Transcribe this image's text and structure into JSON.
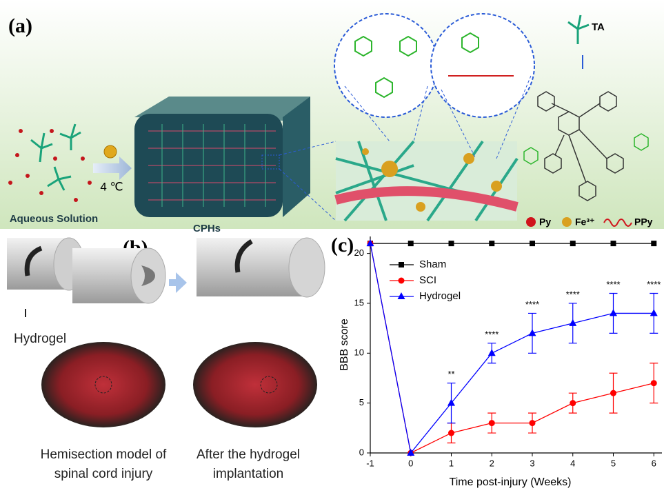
{
  "panel_a": {
    "label": "(a)",
    "aqueous_solution": "Aqueous Solution",
    "temperature": "4 ℃",
    "cphs": "CPHs",
    "ta": "TA",
    "legend": [
      "Py",
      "Fe³⁺",
      "PPy"
    ]
  },
  "panel_b": {
    "label": "(b)",
    "hydrogel": "Hydrogel",
    "caption_left": [
      "Hemisection model of",
      "spinal cord injury"
    ],
    "caption_right": [
      "After the hydrogel",
      "implantation"
    ]
  },
  "chart_data": {
    "type": "line",
    "label": "(c)",
    "x_label": "Time post-injury (Weeks)",
    "y_label": "BBB score",
    "x": [
      -1,
      0,
      1,
      2,
      3,
      4,
      5,
      6
    ],
    "xlim": [
      -1,
      6.2
    ],
    "xticks": [
      -1,
      0,
      1,
      2,
      3,
      4,
      5,
      6
    ],
    "ylim": [
      0,
      21.7
    ],
    "yticks": [
      0,
      5,
      10,
      15,
      20
    ],
    "legend": "upper left",
    "series": [
      {
        "name": "Sham",
        "color": "#000000",
        "marker": "square",
        "values": [
          21,
          21,
          21,
          21,
          21,
          21,
          21,
          21
        ],
        "errors": [
          null,
          null,
          null,
          null,
          null,
          null,
          null,
          null
        ]
      },
      {
        "name": "SCI",
        "color": "#ff0000",
        "marker": "circle",
        "values": [
          21,
          0,
          2,
          3,
          3,
          5,
          6,
          7
        ],
        "errors": [
          null,
          null,
          1,
          1,
          1,
          1,
          2,
          2
        ]
      },
      {
        "name": "Hydrogel",
        "color": "#0000ff",
        "marker": "triangle",
        "values": [
          21,
          0,
          5,
          10,
          12,
          13,
          14,
          14
        ],
        "errors": [
          null,
          null,
          2,
          1,
          2,
          2,
          2,
          2
        ]
      }
    ],
    "annotations": [
      {
        "x": 1,
        "text": "**"
      },
      {
        "x": 2,
        "text": "****"
      },
      {
        "x": 3,
        "text": "****"
      },
      {
        "x": 4,
        "text": "****"
      },
      {
        "x": 5,
        "text": "****"
      },
      {
        "x": 6,
        "text": "****"
      }
    ]
  }
}
